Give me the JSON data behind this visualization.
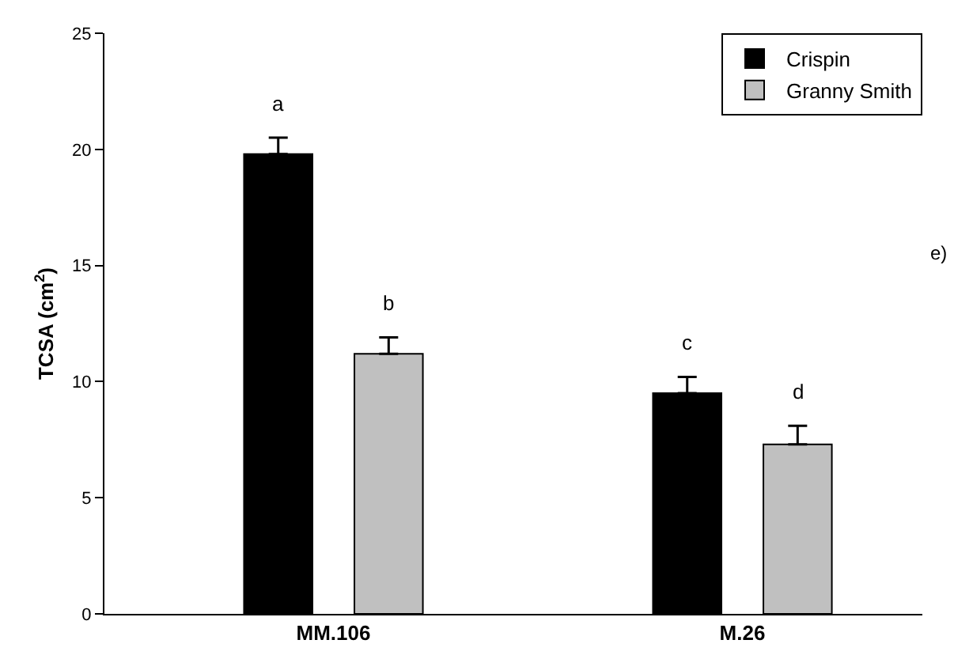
{
  "chart_data": {
    "type": "bar",
    "ylabel": "TCSA (cm$^{2}$)",
    "categories": [
      "MM.106",
      "M.26"
    ],
    "series": [
      {
        "name": "Crispin",
        "color": "#000000",
        "values": [
          19.8,
          9.5
        ],
        "errors": [
          [
            19.8,
            20.5
          ],
          [
            9.5,
            10.2
          ]
        ],
        "value_labels": [
          "a",
          "c"
        ]
      },
      {
        "name": "Granny Smith",
        "color": "#c0c0c0",
        "values": [
          11.2,
          7.3
        ],
        "errors": [
          [
            11.2,
            11.9
          ],
          [
            7.3,
            8.1
          ]
        ],
        "value_labels": [
          "b",
          "d"
        ]
      }
    ],
    "ylim": [
      0,
      25
    ],
    "yticks": [
      0,
      5,
      10,
      15,
      20,
      25
    ],
    "grid": false,
    "legend": "top right",
    "annotations": [
      "e)"
    ]
  }
}
